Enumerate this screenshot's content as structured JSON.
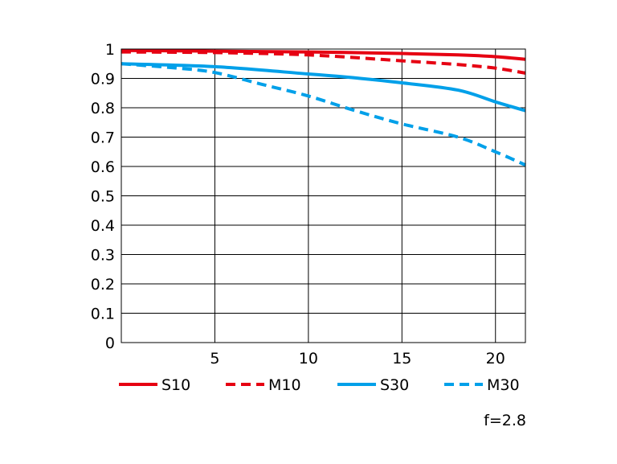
{
  "chart_data": {
    "type": "line",
    "title": "",
    "xlabel": "",
    "ylabel": "",
    "xlim": [
      0,
      21.6
    ],
    "ylim": [
      0,
      1
    ],
    "grid": true,
    "legend_position": "bottom",
    "annotation": "f=2.8",
    "x_ticks": [
      {
        "value": 5,
        "label": "5"
      },
      {
        "value": 10,
        "label": "10"
      },
      {
        "value": 15,
        "label": "15"
      },
      {
        "value": 20,
        "label": "20"
      }
    ],
    "y_ticks": [
      {
        "value": 0,
        "label": "0"
      },
      {
        "value": 0.1,
        "label": "0.1"
      },
      {
        "value": 0.2,
        "label": "0.2"
      },
      {
        "value": 0.3,
        "label": "0.3"
      },
      {
        "value": 0.4,
        "label": "0.4"
      },
      {
        "value": 0.5,
        "label": "0.5"
      },
      {
        "value": 0.6,
        "label": "0.6"
      },
      {
        "value": 0.7,
        "label": "0.7"
      },
      {
        "value": 0.8,
        "label": "0.8"
      },
      {
        "value": 0.9,
        "label": "0.9"
      },
      {
        "value": 1,
        "label": "1"
      }
    ],
    "series": [
      {
        "name": "S10",
        "color": "#e60012",
        "dashed": false,
        "points": [
          [
            0,
            0.995
          ],
          [
            5,
            0.993
          ],
          [
            10,
            0.99
          ],
          [
            15,
            0.985
          ],
          [
            18,
            0.98
          ],
          [
            20,
            0.974
          ],
          [
            21.6,
            0.965
          ]
        ]
      },
      {
        "name": "M10",
        "color": "#e60012",
        "dashed": true,
        "points": [
          [
            0,
            0.99
          ],
          [
            5,
            0.988
          ],
          [
            10,
            0.98
          ],
          [
            15,
            0.96
          ],
          [
            18,
            0.947
          ],
          [
            20,
            0.935
          ],
          [
            21.6,
            0.918
          ]
        ]
      },
      {
        "name": "S30",
        "color": "#00a0e9",
        "dashed": false,
        "points": [
          [
            0,
            0.95
          ],
          [
            5,
            0.94
          ],
          [
            10,
            0.915
          ],
          [
            12,
            0.905
          ],
          [
            15,
            0.885
          ],
          [
            18,
            0.86
          ],
          [
            20,
            0.82
          ],
          [
            21.6,
            0.79
          ]
        ]
      },
      {
        "name": "M30",
        "color": "#00a0e9",
        "dashed": true,
        "points": [
          [
            0,
            0.95
          ],
          [
            3,
            0.935
          ],
          [
            5,
            0.92
          ],
          [
            7.5,
            0.88
          ],
          [
            10,
            0.84
          ],
          [
            12.5,
            0.79
          ],
          [
            15,
            0.745
          ],
          [
            18,
            0.7
          ],
          [
            20,
            0.65
          ],
          [
            21.6,
            0.605
          ]
        ]
      }
    ]
  }
}
